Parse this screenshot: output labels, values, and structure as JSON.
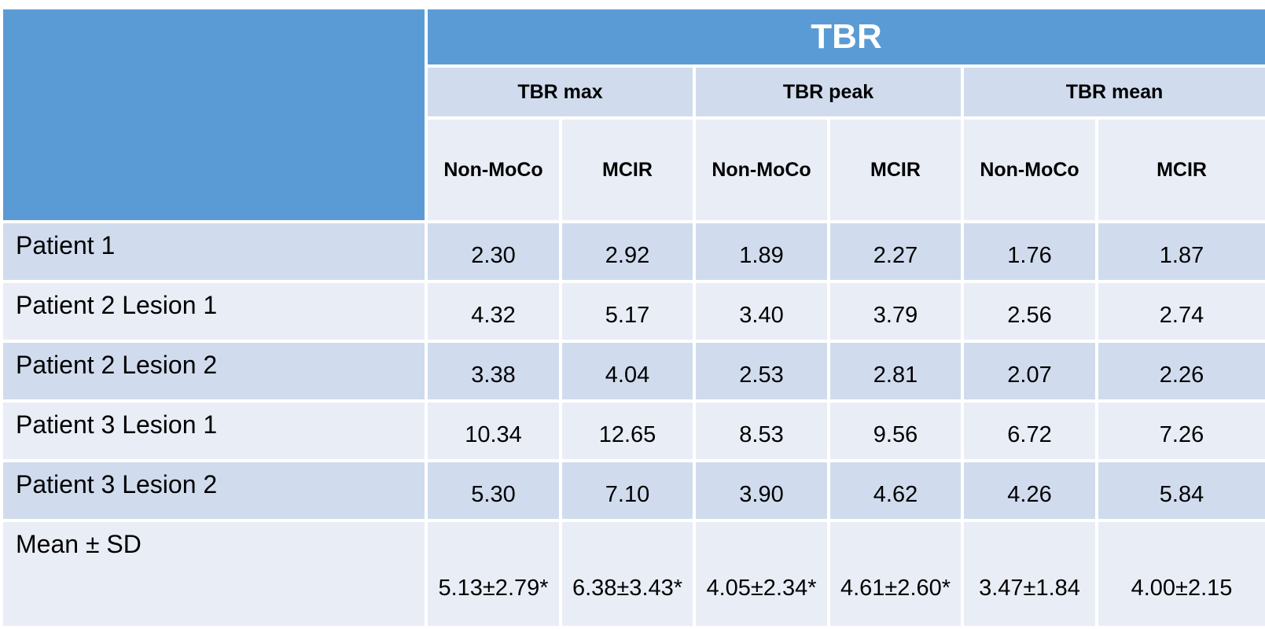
{
  "chart_data": {
    "type": "table",
    "title": "TBR",
    "group_headers": [
      "TBR max",
      "TBR peak",
      "TBR mean"
    ],
    "sub_headers": [
      "Non-MoCo",
      "MCIR",
      "Non-MoCo",
      "MCIR",
      "Non-MoCo",
      "MCIR"
    ],
    "rows": [
      {
        "label": "Patient 1",
        "values": [
          "2.30",
          "2.92",
          "1.89",
          "2.27",
          "1.76",
          "1.87"
        ]
      },
      {
        "label": "Patient 2 Lesion 1",
        "values": [
          "4.32",
          "5.17",
          "3.40",
          "3.79",
          "2.56",
          "2.74"
        ]
      },
      {
        "label": "Patient 2 Lesion 2",
        "values": [
          "3.38",
          "4.04",
          "2.53",
          "2.81",
          "2.07",
          "2.26"
        ]
      },
      {
        "label": "Patient 3 Lesion 1",
        "values": [
          "10.34",
          "12.65",
          "8.53",
          "9.56",
          "6.72",
          "7.26"
        ]
      },
      {
        "label": "Patient 3 Lesion 2",
        "values": [
          "5.30",
          "7.10",
          "3.90",
          "4.62",
          "4.26",
          "5.84"
        ]
      },
      {
        "label": "Mean ± SD",
        "values": [
          "5.13±2.79*",
          "6.38±3.43*",
          "4.05±2.34*",
          "4.61±2.60*",
          "3.47±1.84",
          "4.00±2.15"
        ]
      }
    ],
    "colors": {
      "header": "#5b9bd5",
      "band_dark": "#d0dcee",
      "band_light": "#e9edf6"
    }
  }
}
